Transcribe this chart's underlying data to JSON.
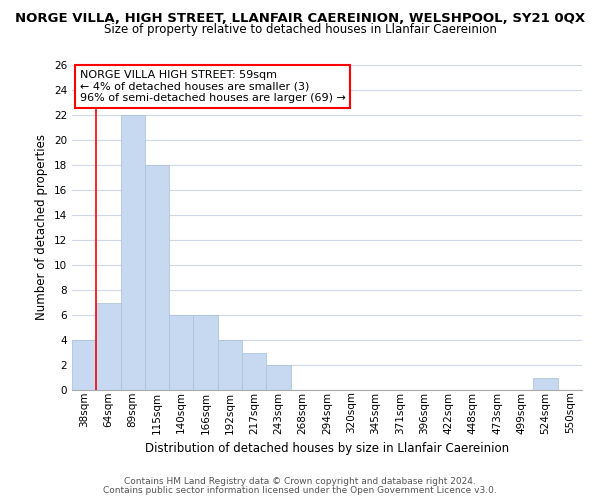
{
  "title": "NORGE VILLA, HIGH STREET, LLANFAIR CAEREINION, WELSHPOOL, SY21 0QX",
  "subtitle": "Size of property relative to detached houses in Llanfair Caereinion",
  "xlabel": "Distribution of detached houses by size in Llanfair Caereinion",
  "ylabel": "Number of detached properties",
  "bar_labels": [
    "38sqm",
    "64sqm",
    "89sqm",
    "115sqm",
    "140sqm",
    "166sqm",
    "192sqm",
    "217sqm",
    "243sqm",
    "268sqm",
    "294sqm",
    "320sqm",
    "345sqm",
    "371sqm",
    "396sqm",
    "422sqm",
    "448sqm",
    "473sqm",
    "499sqm",
    "524sqm",
    "550sqm"
  ],
  "bar_values": [
    4,
    7,
    22,
    18,
    6,
    6,
    4,
    3,
    2,
    0,
    0,
    0,
    0,
    0,
    0,
    0,
    0,
    0,
    0,
    1,
    0
  ],
  "bar_color": "#c6d9f0",
  "ylim": [
    0,
    26
  ],
  "yticks": [
    0,
    2,
    4,
    6,
    8,
    10,
    12,
    14,
    16,
    18,
    20,
    22,
    24,
    26
  ],
  "vline_x": 0.5,
  "annotation_title": "NORGE VILLA HIGH STREET: 59sqm",
  "annotation_line1": "← 4% of detached houses are smaller (3)",
  "annotation_line2": "96% of semi-detached houses are larger (69) →",
  "footer1": "Contains HM Land Registry data © Crown copyright and database right 2024.",
  "footer2": "Contains public sector information licensed under the Open Government Licence v3.0.",
  "grid_color": "#d0d8e8",
  "background_color": "#ffffff",
  "title_fontsize": 9.5,
  "subtitle_fontsize": 8.5,
  "axis_label_fontsize": 8.5,
  "tick_fontsize": 7.5,
  "ann_fontsize": 8.0,
  "footer_fontsize": 6.5
}
